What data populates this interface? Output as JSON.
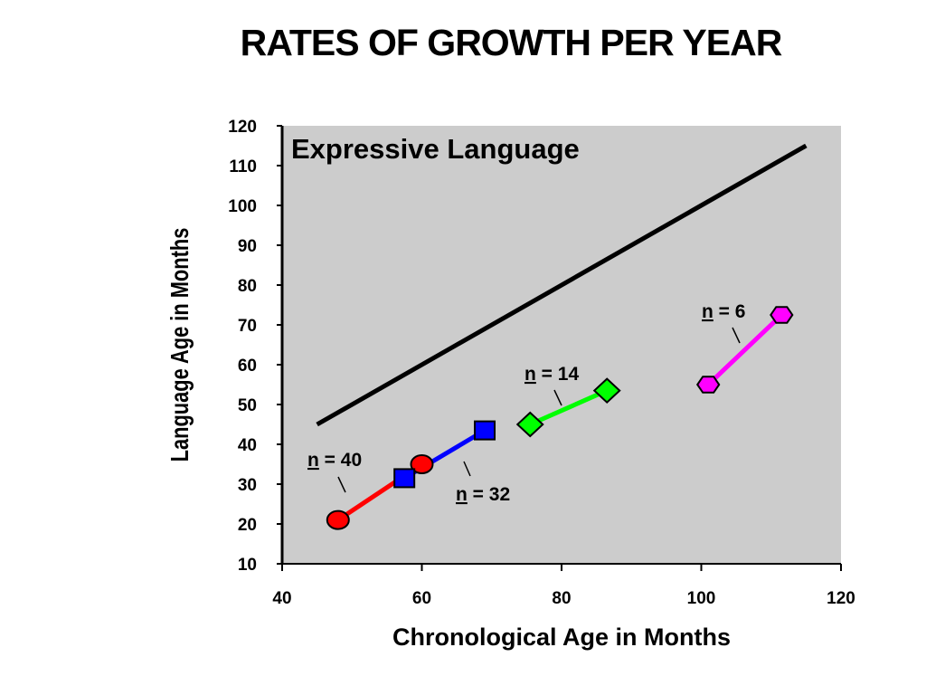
{
  "title": "RATES OF GROWTH PER YEAR",
  "chart_data": {
    "type": "line",
    "panel_title": "Expressive Language",
    "xlabel": "Chronological Age in Months",
    "ylabel": "Language Age in Months",
    "xlim": [
      40,
      120
    ],
    "ylim": [
      10,
      120
    ],
    "x_ticks": [
      40,
      60,
      80,
      100,
      120
    ],
    "y_ticks": [
      10,
      20,
      30,
      40,
      50,
      60,
      70,
      80,
      90,
      100,
      110,
      120
    ],
    "background": "#cccccc",
    "grid": false,
    "series": [
      {
        "x": [
          45,
          115
        ],
        "y": [
          45,
          115
        ],
        "color": "#000000",
        "marker": "none"
      },
      {
        "x": [
          48,
          60
        ],
        "y": [
          21,
          35
        ],
        "color": "#ff0000",
        "marker": "circle",
        "label_n": "40"
      },
      {
        "x": [
          57.5,
          69
        ],
        "y": [
          31.5,
          43.5
        ],
        "color": "#0000ff",
        "marker": "square",
        "label_n": "32"
      },
      {
        "x": [
          75.5,
          86.5
        ],
        "y": [
          45,
          53.5
        ],
        "color": "#00ff00",
        "marker": "diamond",
        "label_n": "14"
      },
      {
        "x": [
          101,
          111.5
        ],
        "y": [
          55,
          72.5
        ],
        "color": "#ff00ff",
        "marker": "hexagon",
        "label_n": "6"
      }
    ],
    "annotations": [
      {
        "n_text": "n",
        "rest_text": " = 40",
        "series": 1
      },
      {
        "n_text": "n",
        "rest_text": " = 32",
        "series": 2
      },
      {
        "n_text": "n",
        "rest_text": " = 14",
        "series": 3
      },
      {
        "n_text": "n",
        "rest_text": " = 6",
        "series": 4
      }
    ]
  }
}
